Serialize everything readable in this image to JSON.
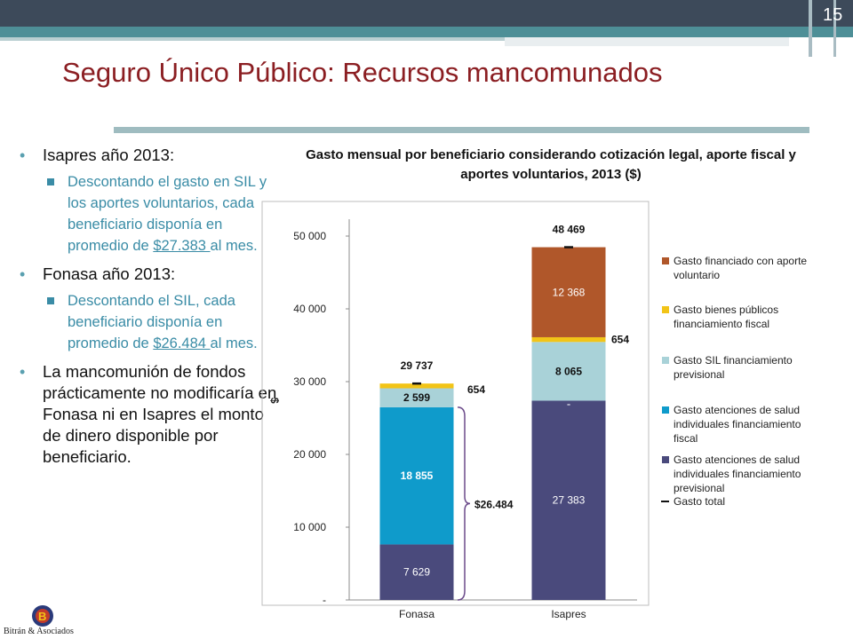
{
  "slide": {
    "page_number": "15",
    "title": "Seguro Único Público: Recursos mancomunados",
    "colors": {
      "title": "#8B1E22",
      "top_band": "#3d4a5a",
      "accent_band": "#4e8f97",
      "sub_text": "#3a8ca6"
    }
  },
  "bullets": {
    "b1": "Isapres año 2013:",
    "b1_sub_pre": "Descontando el gasto en SIL y los aportes voluntarios, cada beneficiario disponía en promedio de ",
    "b1_sub_link": "$27.383 ",
    "b1_sub_post": "al mes.",
    "b2": "Fonasa año 2013:",
    "b2_sub_pre": "Descontando el SIL, cada beneficiario disponía en promedio de ",
    "b2_sub_link": "$26.484 ",
    "b2_sub_post": "al mes.",
    "b3": "La mancomunión de fondos prácticamente no modificaría en Fonasa ni en Isapres el monto de dinero disponible por beneficiario."
  },
  "logo": {
    "text": "Bitrán & Asociados",
    "icon": "globe-logo-icon"
  },
  "chart_data": {
    "type": "bar",
    "stacked": true,
    "title": "Gasto mensual por beneficiario considerando cotización legal, aporte fiscal y aportes voluntarios, 2013 ($)",
    "ylabel": "$",
    "ylim": [
      0,
      55000
    ],
    "y_ticks": [
      {
        "value": 0,
        "label": "-"
      },
      {
        "value": 10000,
        "label": "10 000"
      },
      {
        "value": 20000,
        "label": "20 000"
      },
      {
        "value": 30000,
        "label": "30 000"
      },
      {
        "value": 40000,
        "label": "40 000"
      },
      {
        "value": 50000,
        "label": "50 000"
      }
    ],
    "categories": [
      "Fonasa",
      "Isapres"
    ],
    "series": [
      {
        "name": "Gasto atenciones de salud individuales financiamiento previsional",
        "color": "#4a4a7c",
        "values": [
          7629,
          27383
        ],
        "labels": [
          "7 629",
          "27 383"
        ],
        "label_color": "#ffffff"
      },
      {
        "name": "Gasto atenciones de salud individuales financiamiento fiscal",
        "color": "#0f9bcb",
        "values": [
          18855,
          0
        ],
        "labels": [
          "18 855",
          "-"
        ],
        "label_color": "#ffffff"
      },
      {
        "name": "Gasto SIL financiamiento previsional",
        "color": "#a9d2d8",
        "values": [
          2599,
          8065
        ],
        "labels": [
          "2 599",
          "8 065"
        ],
        "label_color": "#111111"
      },
      {
        "name": "Gasto bienes públicos financiamiento fiscal",
        "color": "#f2c417",
        "values": [
          654,
          654
        ],
        "labels": [
          "654",
          "654"
        ],
        "label_color": "#111111"
      },
      {
        "name": "Gasto financiado con aporte voluntario",
        "color": "#b0572a",
        "values": [
          0,
          12368
        ],
        "labels": [
          "",
          "12 368"
        ],
        "label_color": "#ffffff"
      }
    ],
    "totals": [
      29737,
      48469
    ],
    "total_labels": [
      "29 737",
      "48 469"
    ],
    "total_series_name": "Gasto total",
    "annotation": "$26.484",
    "legend_order": [
      4,
      3,
      2,
      1,
      0
    ],
    "legend_position": "right",
    "grid": false
  }
}
